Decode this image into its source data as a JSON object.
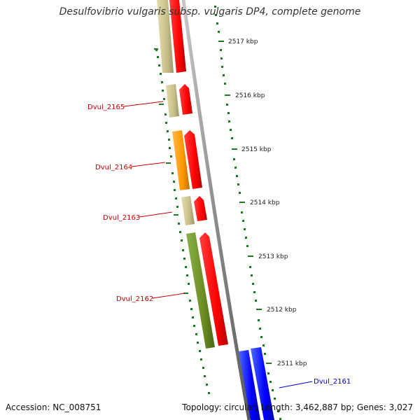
{
  "title": "Desulfovibrio vulgaris subsp. vulgaris DP4, complete genome",
  "footer": {
    "accession_label": "Accession:",
    "accession": "NC_008751",
    "topology_label": "Topology:",
    "topology": "circular",
    "length_label": "Length:",
    "length": "3,462,887 bp",
    "genes_label": "Genes:",
    "genes": "3,027"
  },
  "kbp_labels": [
    "2517 kbp",
    "2516 kbp",
    "2515 kbp",
    "2514 kbp",
    "2513 kbp",
    "2512 kbp",
    "2511 kbp"
  ],
  "gene_labels": [
    {
      "text": "Dvul_2165",
      "color": "#cc0000"
    },
    {
      "text": "Dvul_2164",
      "color": "#cc0000"
    },
    {
      "text": "Dvul_2163",
      "color": "#cc0000"
    },
    {
      "text": "Dvul_2162",
      "color": "#cc0000"
    },
    {
      "text": "Dvul_2161",
      "color": "#0000cc"
    }
  ],
  "colors": {
    "backbone": "#8a8a8a",
    "tick": "#1f7a1f",
    "cds": "#ff0000",
    "khaki": "#c8c08a",
    "orange": "#ff9900",
    "olive": "#6b8e23",
    "blue": "#0000ff"
  }
}
